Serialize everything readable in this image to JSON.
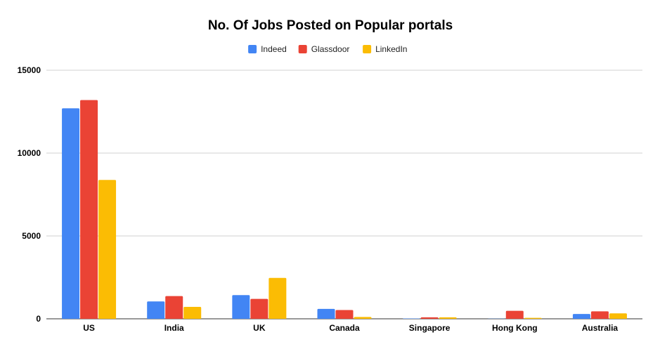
{
  "chart_data": {
    "type": "bar",
    "title": "No. Of Jobs Posted on Popular portals",
    "xlabel": "",
    "ylabel": "",
    "categories": [
      "US",
      "India",
      "UK",
      "Canada",
      "Singapore",
      "Hong Kong",
      "Australia"
    ],
    "series": [
      {
        "name": "Indeed",
        "color": "#4285F4",
        "values": [
          12700,
          1050,
          1430,
          600,
          20,
          10,
          290
        ]
      },
      {
        "name": "Glassdoor",
        "color": "#EA4335",
        "values": [
          13200,
          1370,
          1200,
          530,
          90,
          480,
          450
        ]
      },
      {
        "name": "LinkedIn",
        "color": "#FBBC04",
        "values": [
          8380,
          720,
          2470,
          110,
          90,
          60,
          330
        ]
      }
    ],
    "ylim": [
      0,
      15000
    ],
    "yticks": [
      "0",
      "5000",
      "10000",
      "15000"
    ],
    "grid": true,
    "legend_position": "top-center"
  }
}
